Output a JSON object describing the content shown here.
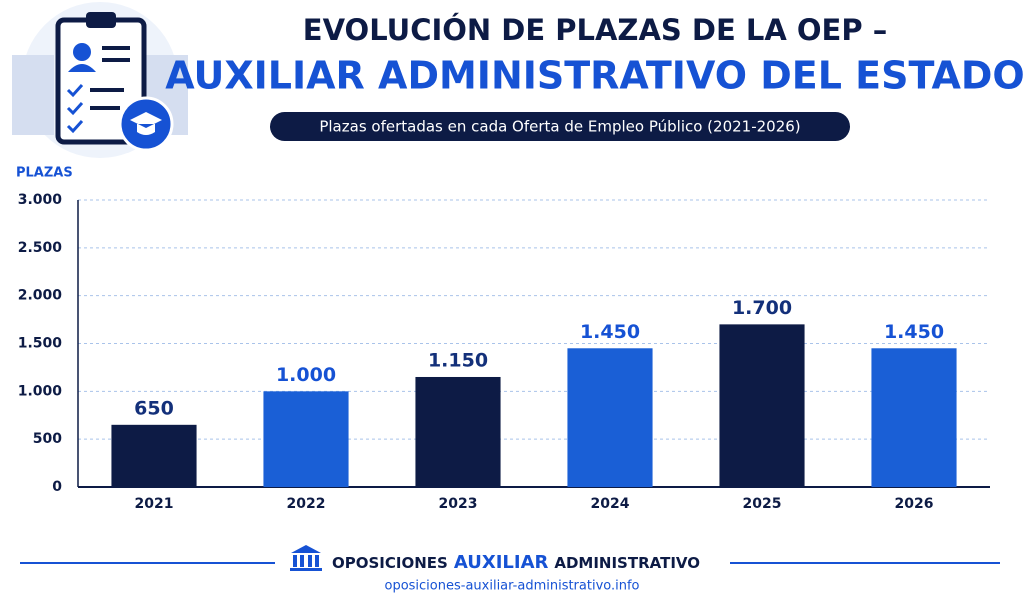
{
  "chart_data": {
    "type": "bar",
    "title": [
      "EVOLUCIÓN DE PLAZAS DE LA OEP –",
      "AUXILIAR ADMINISTRATIVO DEL ESTADO"
    ],
    "subtitle": "Plazas ofertadas en cada Oferta de Empleo Público (2021-2026)",
    "y_label": "PLAZAS",
    "categories": [
      "2021",
      "2022",
      "2023",
      "2024",
      "2025",
      "2026"
    ],
    "values": [
      650,
      1000,
      1150,
      1450,
      1700,
      1450
    ],
    "value_labels": [
      "650",
      "1.000",
      "1.150",
      "1.450",
      "1.700",
      "1.450"
    ],
    "colors": [
      "#0d1b45",
      "#1a5fd6",
      "#0d1b45",
      "#1a5fd6",
      "#0d1b45",
      "#1a5fd6"
    ],
    "ylim": [
      0,
      3000
    ],
    "yticks": [
      0,
      500,
      {
        "value": 1000,
        "label": "1.000"
      },
      {
        "value": 1500,
        "label": "1.500"
      },
      {
        "value": 2000,
        "label": "2.000"
      },
      {
        "value": 2500,
        "label": "2.500"
      },
      {
        "value": 3000,
        "label": "3.000"
      }
    ],
    "grid": true
  },
  "footer": {
    "brand": [
      "OPOSICIONES",
      "AUXILIAR",
      "ADMINISTRATIVO"
    ],
    "url": "oposiciones-auxiliar-administrativo.info"
  }
}
